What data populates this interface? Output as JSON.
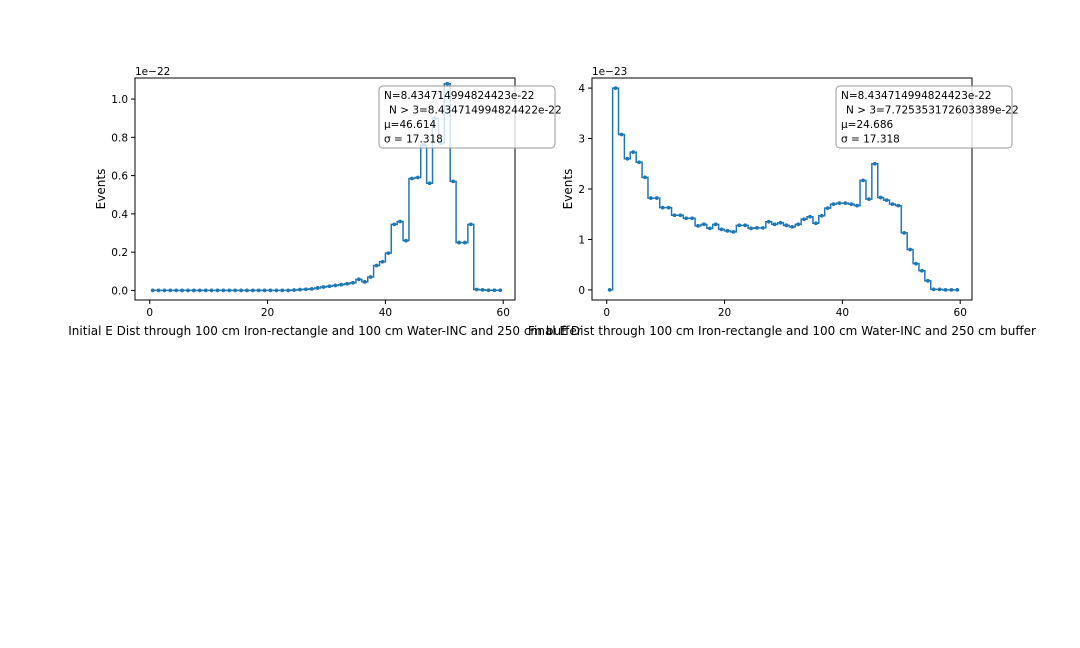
{
  "colors": {
    "series": "#1f77b4",
    "axes": "#000000",
    "background": "#ffffff",
    "legend_border": "#999999"
  },
  "chart_data": [
    {
      "type": "line",
      "drawstyle": "steps-mid",
      "marker": "dot",
      "title": "",
      "xlabel": "Initial E Dist through 100 cm Iron-rectangle and 100 cm Water-INC and 250 cm buffer",
      "ylabel": "Events",
      "scale_label": "1e−22",
      "xlim": [
        -2.5,
        62
      ],
      "ylim": [
        -0.05,
        1.11
      ],
      "xticks": [
        0,
        20,
        40,
        60
      ],
      "xtick_labels": [
        "0",
        "20",
        "40",
        "60"
      ],
      "yticks": [
        0.0,
        0.2,
        0.4,
        0.6,
        0.8,
        1.0
      ],
      "ytick_labels": [
        "0.0",
        "0.2",
        "0.4",
        "0.6",
        "0.8",
        "1.0"
      ],
      "grid": false,
      "stats_box": {
        "placement": "top-right",
        "lines": [
          "N=8.434714994824423e-22",
          "N > 3=8.434714994824422e-22",
          "μ=46.614",
          "σ = 17.318"
        ]
      },
      "x": [
        0.5,
        1.5,
        2.5,
        3.5,
        4.5,
        5.5,
        6.5,
        7.5,
        8.5,
        9.5,
        10.5,
        11.5,
        12.5,
        13.5,
        14.5,
        15.5,
        16.5,
        17.5,
        18.5,
        19.5,
        20.5,
        21.5,
        22.5,
        23.5,
        24.5,
        25.5,
        26.5,
        27.5,
        28.5,
        29.5,
        30.5,
        31.5,
        32.5,
        33.5,
        34.5,
        35.5,
        36.5,
        37.5,
        38.5,
        39.5,
        40.5,
        41.5,
        42.5,
        43.5,
        44.5,
        45.5,
        46.5,
        47.5,
        48.5,
        49.5,
        50.5,
        51.5,
        52.5,
        53.5,
        54.5,
        55.5,
        56.5,
        57.5,
        58.5,
        59.5
      ],
      "y": [
        0,
        0,
        0,
        0,
        0,
        0,
        0,
        0,
        0,
        0,
        0,
        0,
        0,
        0,
        0,
        0,
        0,
        0,
        0,
        0,
        0,
        0,
        0,
        0,
        0.002,
        0.004,
        0.006,
        0.008,
        0.013,
        0.018,
        0.022,
        0.026,
        0.03,
        0.035,
        0.04,
        0.058,
        0.045,
        0.07,
        0.13,
        0.15,
        0.195,
        0.345,
        0.36,
        0.26,
        0.585,
        0.59,
        0.76,
        0.56,
        0.9,
        0.77,
        1.08,
        0.57,
        0.25,
        0.25,
        0.345,
        0.005,
        0.003,
        0.001,
        0.001,
        0.001
      ]
    },
    {
      "type": "line",
      "drawstyle": "steps-mid",
      "marker": "dot",
      "title": "",
      "xlabel": "Final E Dist through 100 cm Iron-rectangle and 100 cm Water-INC and 250 cm buffer",
      "ylabel": "Events",
      "scale_label": "1e−23",
      "xlim": [
        -2.5,
        62
      ],
      "ylim": [
        -0.2,
        4.2
      ],
      "xticks": [
        0,
        20,
        40,
        60
      ],
      "xtick_labels": [
        "0",
        "20",
        "40",
        "60"
      ],
      "yticks": [
        0,
        1,
        2,
        3,
        4
      ],
      "ytick_labels": [
        "0",
        "1",
        "2",
        "3",
        "4"
      ],
      "grid": false,
      "stats_box": {
        "placement": "top-right",
        "lines": [
          "N=8.434714994824423e-22",
          "N > 3=7.725353172603389e-22",
          "μ=24.686",
          "σ = 17.318"
        ]
      },
      "x": [
        0.5,
        1.5,
        2.5,
        3.5,
        4.5,
        5.5,
        6.5,
        7.5,
        8.5,
        9.5,
        10.5,
        11.5,
        12.5,
        13.5,
        14.5,
        15.5,
        16.5,
        17.5,
        18.5,
        19.5,
        20.5,
        21.5,
        22.5,
        23.5,
        24.5,
        25.5,
        26.5,
        27.5,
        28.5,
        29.5,
        30.5,
        31.5,
        32.5,
        33.5,
        34.5,
        35.5,
        36.5,
        37.5,
        38.5,
        39.5,
        40.5,
        41.5,
        42.5,
        43.5,
        44.5,
        45.5,
        46.5,
        47.5,
        48.5,
        49.5,
        50.5,
        51.5,
        52.5,
        53.5,
        54.5,
        55.5,
        56.5,
        57.5,
        58.5,
        59.5
      ],
      "y": [
        0,
        4.0,
        3.08,
        2.6,
        2.73,
        2.53,
        2.23,
        1.82,
        1.82,
        1.63,
        1.63,
        1.48,
        1.48,
        1.42,
        1.42,
        1.27,
        1.3,
        1.22,
        1.3,
        1.2,
        1.17,
        1.15,
        1.28,
        1.28,
        1.22,
        1.23,
        1.23,
        1.35,
        1.3,
        1.33,
        1.28,
        1.25,
        1.3,
        1.4,
        1.45,
        1.32,
        1.47,
        1.62,
        1.7,
        1.72,
        1.72,
        1.7,
        1.67,
        2.17,
        1.8,
        2.5,
        1.83,
        1.78,
        1.7,
        1.67,
        1.13,
        0.8,
        0.52,
        0.38,
        0.18,
        0.01,
        0.01,
        0.0,
        0.0,
        0.0
      ]
    }
  ]
}
